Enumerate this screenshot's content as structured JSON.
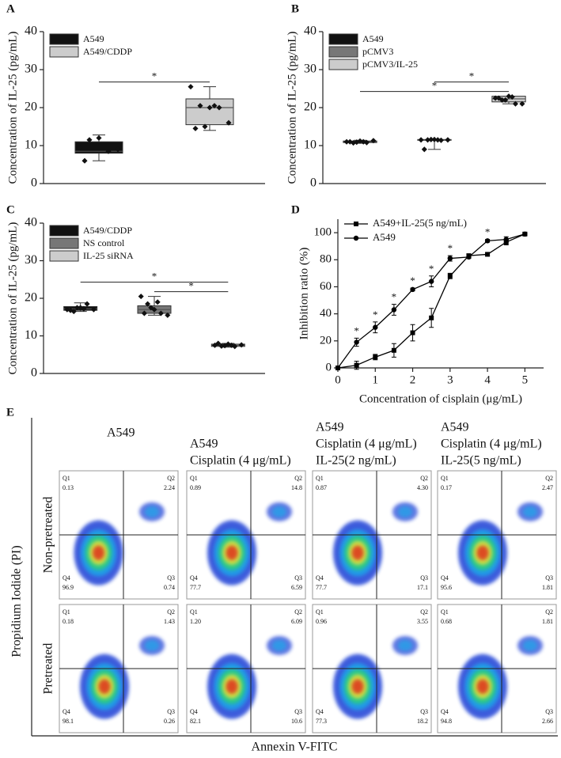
{
  "chart_data": [
    {
      "panel_label": "A",
      "type": "box",
      "ylabel": "Concentration of IL-25 (pg/mL)",
      "ylim": [
        0,
        40
      ],
      "yticks": [
        0,
        10,
        20,
        30,
        40
      ],
      "series": [
        {
          "name": "A549",
          "color": "#111111",
          "box": [
            6,
            8,
            8.5,
            11,
            12.8
          ],
          "points": [
            9.5,
            11.5,
            12,
            8.5,
            9,
            6,
            10
          ]
        },
        {
          "name": "A549/CDDP",
          "color": "#cccccc",
          "box": [
            14,
            15.5,
            20,
            22.3,
            25.5
          ],
          "points": [
            25.5,
            20.5,
            20,
            20,
            16,
            14.5,
            15,
            20.5
          ]
        }
      ],
      "significance": [
        {
          "label": "*",
          "from": 0,
          "to": 1
        }
      ]
    },
    {
      "panel_label": "B",
      "type": "box",
      "ylabel": "Concentration of IL-25 (pg/mL)",
      "ylim": [
        0,
        40
      ],
      "yticks": [
        0,
        10,
        20,
        30,
        40
      ],
      "series": [
        {
          "name": "A549",
          "color": "#111111",
          "box": [
            10.6,
            10.8,
            11,
            11.2,
            11.4
          ],
          "points": [
            11,
            10.7,
            11.2,
            10.8,
            11.3,
            11,
            10.9,
            11
          ]
        },
        {
          "name": "pCMV3",
          "color": "#777777",
          "box": [
            9,
            11.4,
            11.5,
            11.6,
            11.7
          ],
          "points": [
            11.5,
            11.5,
            11.6,
            11.4,
            11.5,
            9,
            11.6,
            11.5
          ]
        },
        {
          "name": "pCMV3/IL-25",
          "color": "#cccccc",
          "box": [
            21,
            21.5,
            22.3,
            23,
            23
          ],
          "points": [
            22.5,
            22,
            23,
            21,
            21,
            22.5,
            22,
            22.8
          ]
        }
      ],
      "significance": [
        {
          "label": "*",
          "from": 0,
          "to": 2
        },
        {
          "label": "*",
          "from": 1,
          "to": 2
        }
      ]
    },
    {
      "panel_label": "C",
      "type": "box",
      "ylabel": "Concentration of IL-25 (pg/mL)",
      "ylim": [
        0,
        40
      ],
      "yticks": [
        0,
        10,
        20,
        30,
        40
      ],
      "series": [
        {
          "name": "A549/CDDP",
          "color": "#111111",
          "box": [
            16.5,
            16.8,
            17.2,
            17.8,
            18.8
          ],
          "points": [
            17,
            16.5,
            17.5,
            18.5,
            17,
            16.8,
            17.5,
            17.2
          ]
        },
        {
          "name": "NS control",
          "color": "#777777",
          "box": [
            15.5,
            16,
            17,
            18,
            20.5
          ],
          "points": [
            20.5,
            18.5,
            17,
            16,
            15.5,
            16,
            17.5,
            19
          ]
        },
        {
          "name": "IL-25 siRNA",
          "color": "#cccccc",
          "box": [
            7,
            7.2,
            7.5,
            7.8,
            8
          ],
          "points": [
            7.5,
            7.3,
            7.8,
            7.2,
            7.6,
            8,
            7.4,
            7.5
          ]
        }
      ],
      "significance": [
        {
          "label": "*",
          "from": 1,
          "to": 2
        },
        {
          "label": "*",
          "from": 0,
          "to": 2
        }
      ]
    },
    {
      "panel_label": "D",
      "type": "line",
      "xlabel": "Concentration of cisplain (μg/mL)",
      "ylabel": "Inhibition ratio (%)",
      "xlim": [
        0,
        5.5
      ],
      "xticks": [
        0,
        1,
        2,
        3,
        4,
        5
      ],
      "ylim": [
        0,
        110
      ],
      "yticks": [
        0,
        20,
        40,
        60,
        80,
        100
      ],
      "x": [
        0,
        0.5,
        1,
        1.5,
        2,
        2.5,
        3,
        3.5,
        4,
        4.5,
        5
      ],
      "series": [
        {
          "name": "A549+IL-25(5 ng/mL)",
          "color": "#000000",
          "marker": "square",
          "values": [
            0,
            2,
            8,
            13,
            26,
            37,
            68,
            83,
            84,
            93,
            99
          ],
          "errors": [
            0,
            3,
            2,
            5,
            6,
            7,
            2,
            1,
            1,
            2,
            1
          ]
        },
        {
          "name": "A549",
          "color": "#000000",
          "marker": "circle",
          "values": [
            0,
            19,
            30,
            43,
            58,
            64,
            81,
            82,
            94,
            95,
            99
          ],
          "errors": [
            0,
            3,
            4,
            4,
            1,
            4,
            2,
            1,
            1,
            2,
            1
          ]
        }
      ],
      "significance_label": "*",
      "significance_x": [
        0.5,
        1,
        1.5,
        2,
        2.5,
        3,
        4
      ]
    },
    {
      "panel_label": "E",
      "type": "flow",
      "ylabel": "Propidium Iodide (PI)",
      "xlabel": "Annexin V-FITC",
      "columns": [
        [
          "A549"
        ],
        [
          "A549",
          "Cisplatin (4 μg/mL)"
        ],
        [
          "A549",
          "Cisplatin (4 μg/mL)",
          "IL-25(2 ng/mL)"
        ],
        [
          "A549",
          "Cisplatin (4 μg/mL)",
          "IL-25(5 ng/mL)"
        ]
      ],
      "rows": [
        "Non-pretreated",
        "Pretreated"
      ],
      "quadrant_names": [
        "Q1",
        "Q2",
        "Q3",
        "Q4"
      ],
      "values": [
        [
          [
            0.13,
            2.24,
            0.74,
            96.9
          ],
          [
            0.89,
            14.8,
            6.59,
            77.7
          ],
          [
            0.87,
            4.3,
            17.1,
            77.7
          ],
          [
            0.17,
            2.47,
            1.81,
            95.6
          ]
        ],
        [
          [
            0.18,
            1.43,
            0.26,
            98.1
          ],
          [
            1.2,
            6.09,
            10.6,
            82.1
          ],
          [
            0.96,
            3.55,
            18.2,
            77.3
          ],
          [
            0.68,
            1.81,
            2.66,
            94.8
          ]
        ]
      ],
      "value_labels": [
        [
          [
            "0.13",
            "2.24",
            "0.74",
            "96.9"
          ],
          [
            "0.89",
            "14.8",
            "6.59",
            "77.7"
          ],
          [
            "0.87",
            "4.30",
            "17.1",
            "77.7"
          ],
          [
            "0.17",
            "2.47",
            "1.81",
            "95.6"
          ]
        ],
        [
          [
            "0.18",
            "1.43",
            "0.26",
            "98.1"
          ],
          [
            "1.20",
            "6.09",
            "10.6",
            "82.1"
          ],
          [
            "0.96",
            "3.55",
            "18.2",
            "77.3"
          ],
          [
            "0.68",
            "1.81",
            "2.66",
            "94.8"
          ]
        ]
      ]
    }
  ]
}
